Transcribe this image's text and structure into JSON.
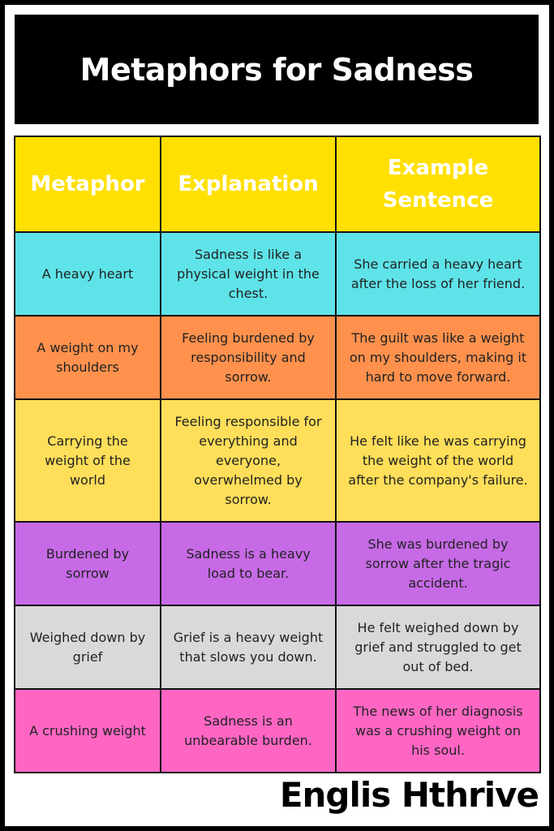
{
  "title": "Metaphors for Sadness",
  "headers": [
    "Metaphor",
    "Explanation",
    "Example Sentence"
  ],
  "header_color": "#FFE000",
  "rows": [
    {
      "color": "#5EE3E8",
      "cells": [
        "A heavy heart",
        "Sadness is like a physical weight in the chest.",
        "She carried a heavy heart after the loss of her friend."
      ]
    },
    {
      "color": "#FF914D",
      "cells": [
        "A weight on my shoulders",
        "Feeling burdened by responsibility and sorrow.",
        "The guilt was like a weight on my shoulders, making it hard to move forward."
      ]
    },
    {
      "color": "#FFDE59",
      "cells": [
        "Carrying the weight of the world",
        "Feeling responsible for everything and everyone, overwhelmed by sorrow.",
        "He felt like he was carrying the weight of the world after the company's failure."
      ]
    },
    {
      "color": "#C76AE6",
      "cells": [
        "Burdened by sorrow",
        "Sadness is a heavy load to bear.",
        "She was burdened by sorrow after the tragic accident."
      ]
    },
    {
      "color": "#D9D9D9",
      "cells": [
        "Weighed down by grief",
        "Grief is a heavy weight that slows you down.",
        "He felt weighed down by grief and struggled to get out of bed."
      ]
    },
    {
      "color": "#FF66C4",
      "cells": [
        "A crushing weight",
        "Sadness is an unbearable burden.",
        "The news of her diagnosis was a crushing weight on his soul."
      ]
    }
  ],
  "footer": "Englis Hthrive"
}
